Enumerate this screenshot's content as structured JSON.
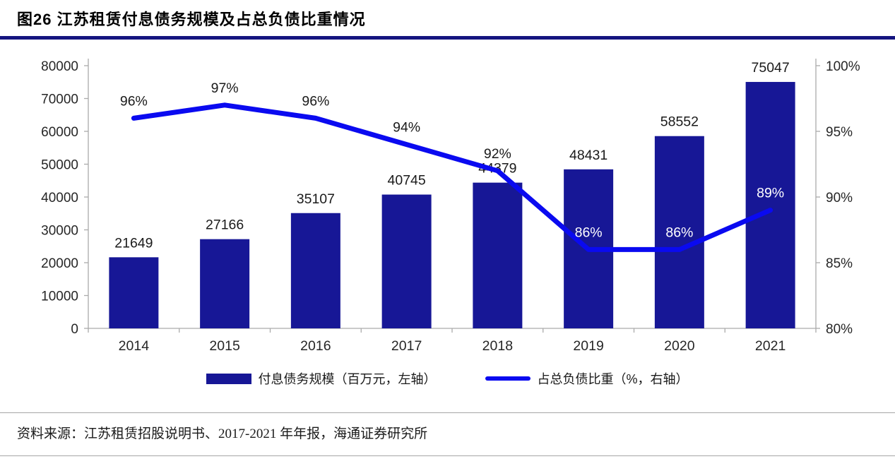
{
  "header": {
    "title": "图26 江苏租赁付息债务规模及占总负债比重情况",
    "rule_color": "#14147F"
  },
  "chart_data": {
    "type": "bar",
    "subtype": "combo-bar-line",
    "categories": [
      "2014",
      "2015",
      "2016",
      "2017",
      "2018",
      "2019",
      "2020",
      "2021"
    ],
    "series": [
      {
        "name": "付息债务规模（百万元，左轴）",
        "type": "bar",
        "axis": "left",
        "color": "#171796",
        "values": [
          21649,
          27166,
          35107,
          40745,
          44379,
          48431,
          58552,
          75047
        ],
        "labels": [
          "21649",
          "27166",
          "35107",
          "40745",
          "44379",
          "48431",
          "58552",
          "75047"
        ]
      },
      {
        "name": "占总负债比重（%，右轴）",
        "type": "line",
        "axis": "right",
        "color": "#0A0AF0",
        "values": [
          96,
          97,
          96,
          94,
          92,
          86,
          86,
          89
        ],
        "labels": [
          "96%",
          "97%",
          "96%",
          "94%",
          "92%",
          "86%",
          "86%",
          "89%"
        ]
      }
    ],
    "left_axis": {
      "min": 0,
      "max": 80000,
      "step": 10000,
      "tick_labels": [
        "0",
        "10000",
        "20000",
        "30000",
        "40000",
        "50000",
        "60000",
        "70000",
        "80000"
      ]
    },
    "right_axis": {
      "min": 80,
      "max": 100,
      "step": 5,
      "tick_labels": [
        "80%",
        "85%",
        "90%",
        "95%",
        "100%"
      ]
    },
    "grid": false,
    "legend_position": "bottom",
    "axis_color": "#ababab",
    "label_color": "#1a1a1a",
    "label_color_on_bar": "#ffffff"
  },
  "footer": {
    "source": "资料来源：江苏租赁招股说明书、2017-2021 年年报，海通证券研究所"
  }
}
